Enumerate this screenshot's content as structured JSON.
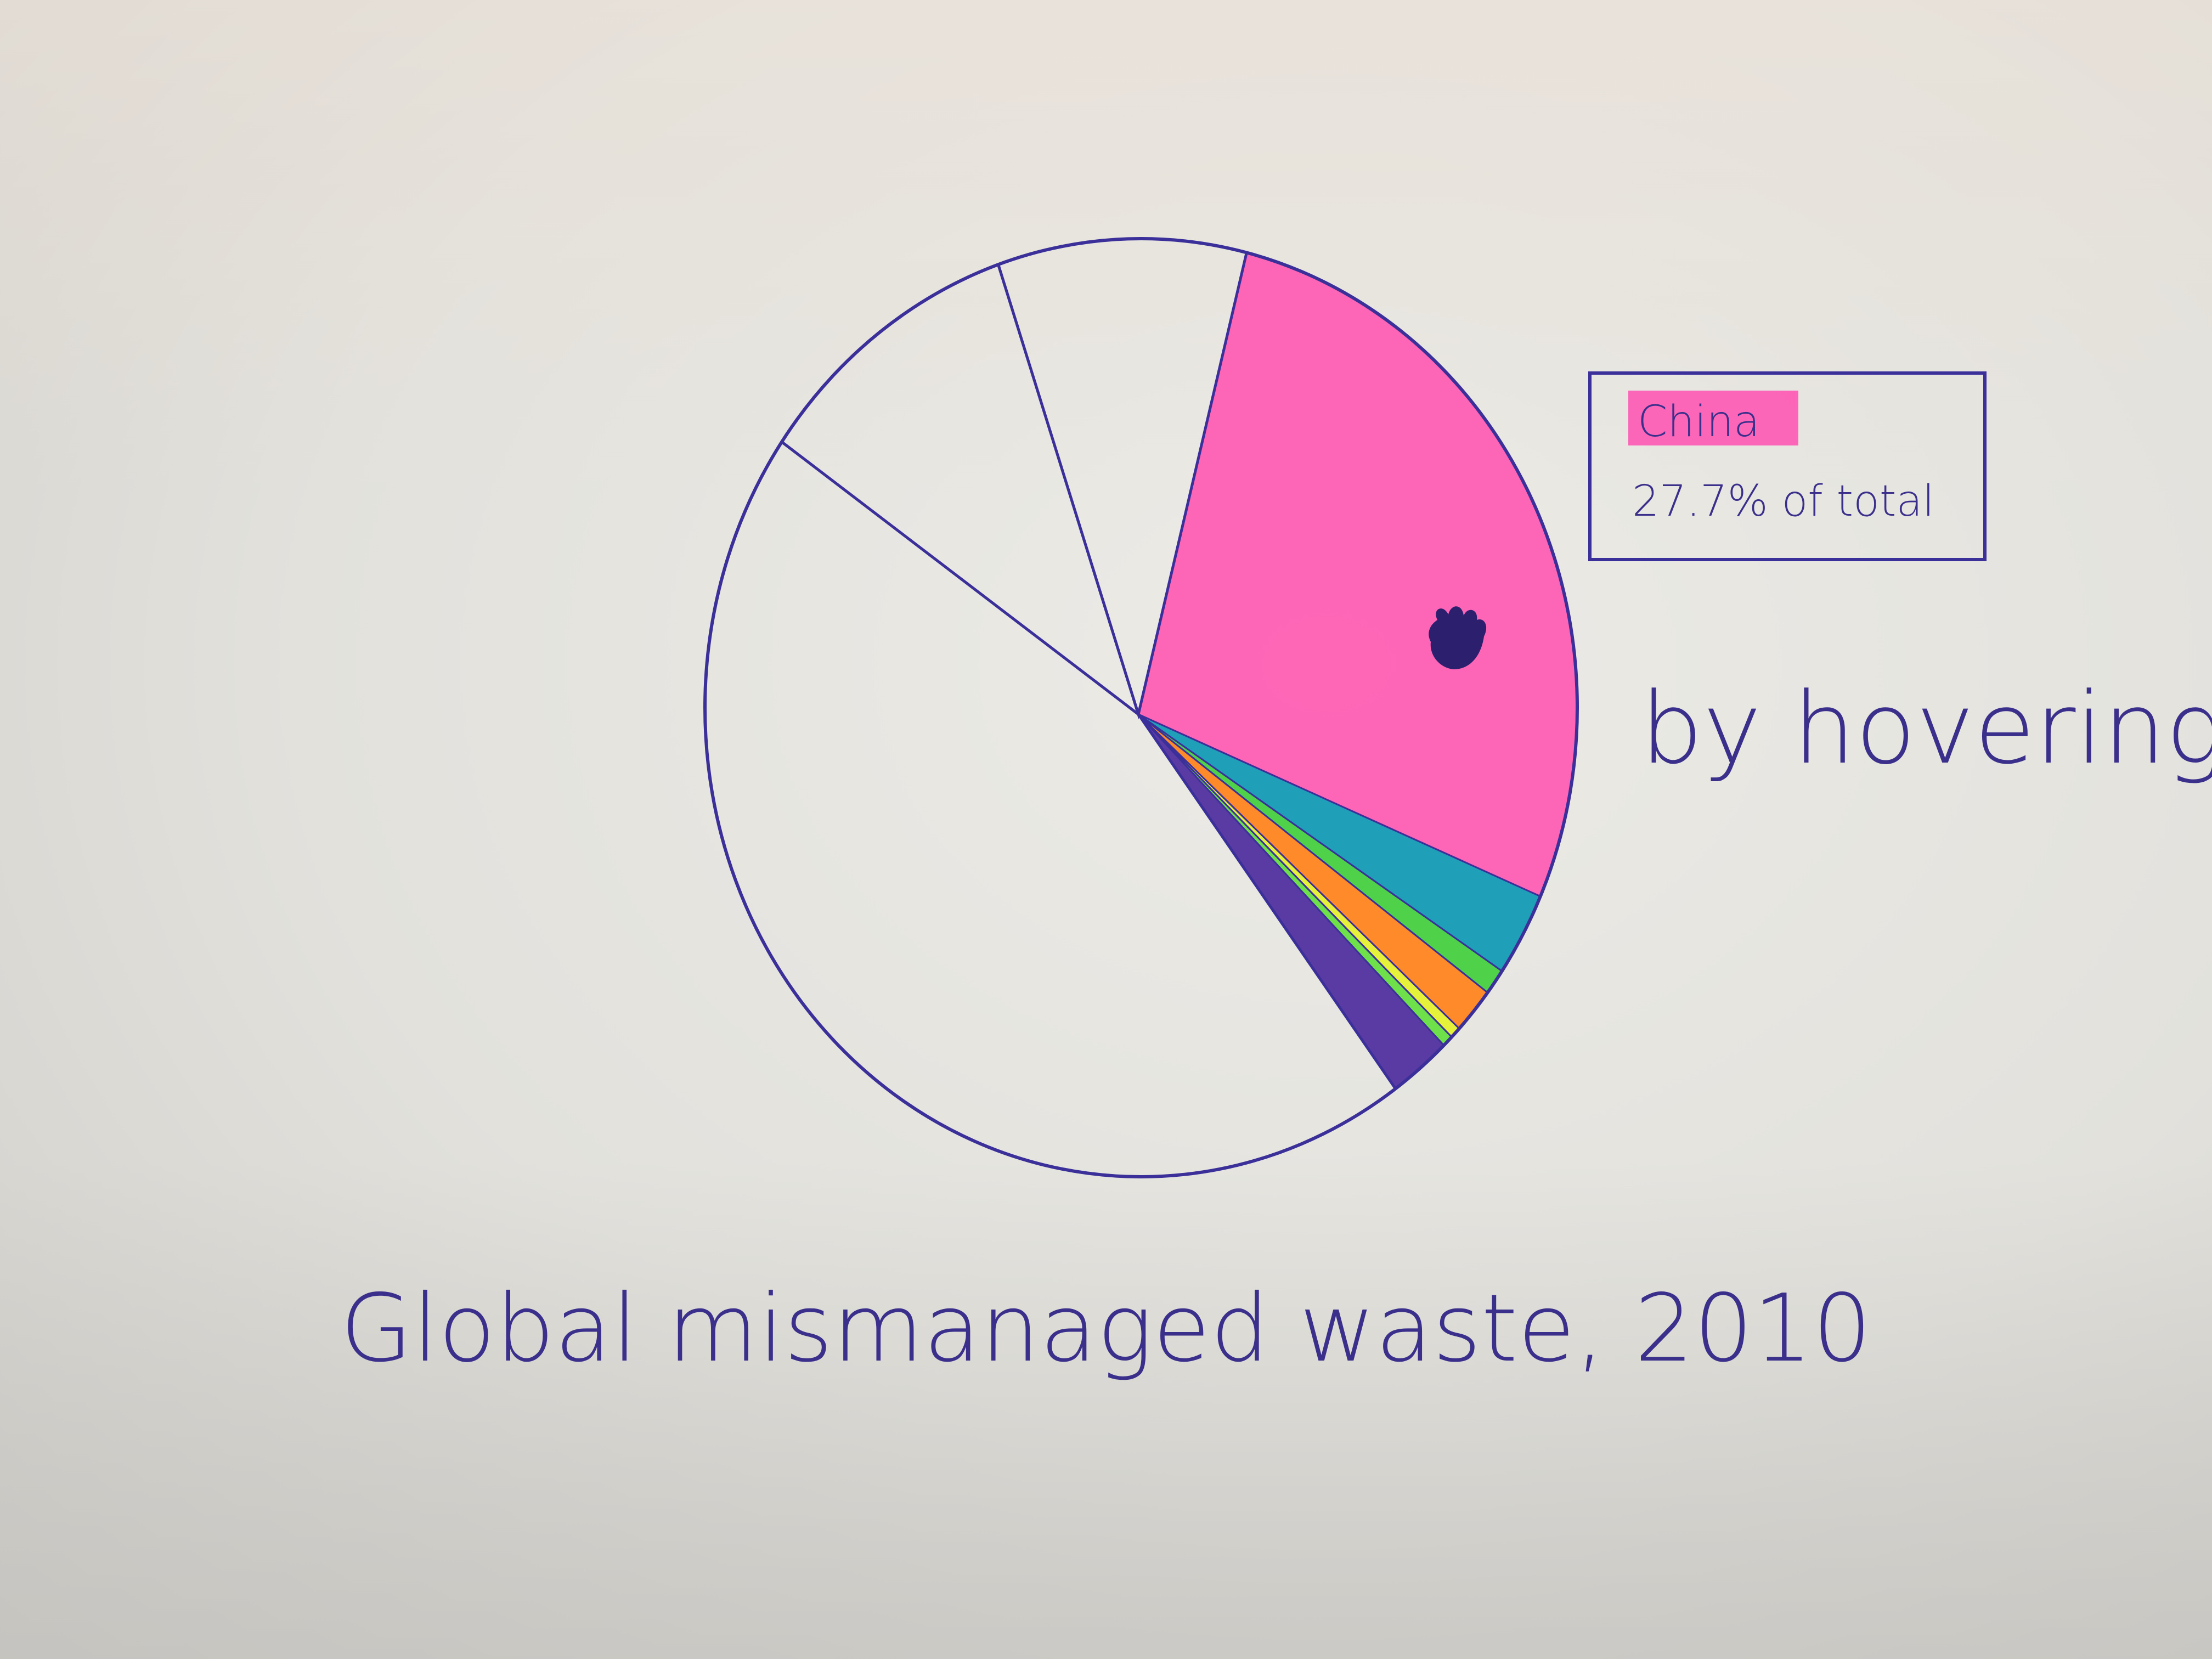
{
  "chart_data": {
    "type": "pie",
    "title": "Global mismanaged waste, 2010",
    "tooltip": {
      "label": "China",
      "value_text": "27.7% of total",
      "highlight_color": "#ff4fb0"
    },
    "annotation": "by hovering",
    "slices": [
      {
        "value": 27.7,
        "color": "#ff5fb4",
        "highlighted": true
      },
      {
        "value": 2.9,
        "color": "#1f9fb8"
      },
      {
        "value": 0.9,
        "color": "#4fd14a"
      },
      {
        "value": 1.6,
        "color": "#ff8a2a"
      },
      {
        "value": 0.4,
        "color": "#e6f23a"
      },
      {
        "value": 0.4,
        "color": "#6ee04a"
      },
      {
        "value": 2.3,
        "color": "#5a3ba3"
      },
      {
        "value": 44.5,
        "color": "none"
      },
      {
        "value": 10.1,
        "color": "none"
      },
      {
        "value": 9.2,
        "color": "none"
      }
    ],
    "stroke_color": "#3b2f9a"
  }
}
